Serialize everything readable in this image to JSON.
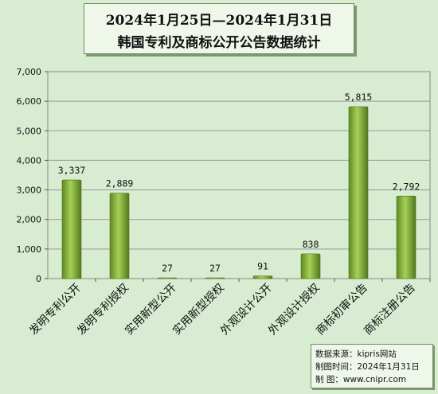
{
  "chart_data": {
    "type": "bar",
    "title": "2024年1月25日—2024年1月31日",
    "subtitle": "韩国专利及商标公开公告数据统计",
    "categories": [
      "发明专利公开",
      "发明专利授权",
      "实用新型公开",
      "实用新型授权",
      "外观设计公开",
      "外观设计授权",
      "商标初审公告",
      "商标注册公告"
    ],
    "values": [
      3337,
      2889,
      27,
      27,
      91,
      838,
      5815,
      2792
    ],
    "data_labels": [
      "3,337",
      "2,889",
      "27",
      "27",
      "91",
      "838",
      "5,815",
      "2,792"
    ],
    "yticks": [
      "0",
      "1,000",
      "2,000",
      "3,000",
      "4,000",
      "5,000",
      "6,000",
      "7,000"
    ],
    "ylim": [
      0,
      7000
    ],
    "grid": true,
    "bar_color": "#8ab43c"
  },
  "source": {
    "data_source": "数据来源：kipris网站",
    "made_time": "制图时间：2024年1月31日",
    "made_by": "制      图：www.cnipr.com"
  }
}
